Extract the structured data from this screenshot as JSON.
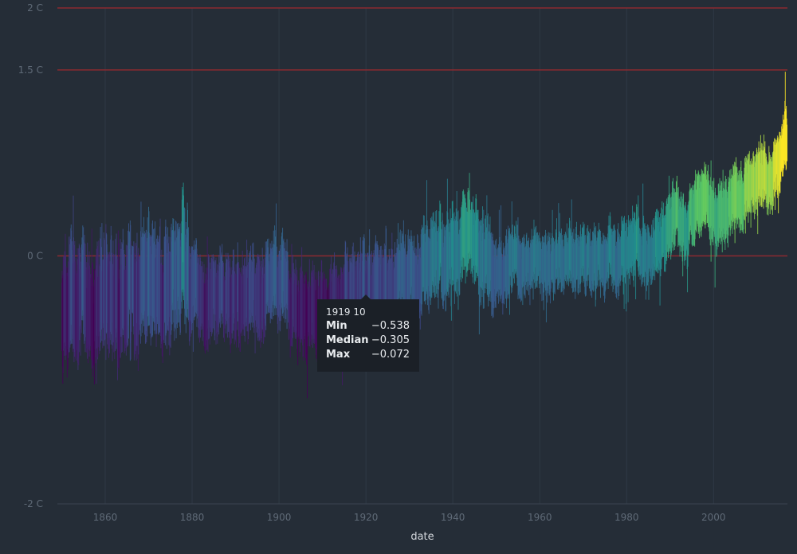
{
  "chart_data": {
    "type": "bar",
    "title": "",
    "xlabel": "date",
    "ylabel": "",
    "x_range": [
      1849,
      2017
    ],
    "y_range": [
      -2,
      2
    ],
    "y_ticks": [
      {
        "value": 2,
        "label": "2 C"
      },
      {
        "value": 1.5,
        "label": "1.5 C"
      },
      {
        "value": 0,
        "label": "0 C"
      },
      {
        "value": -2,
        "label": "-2 C"
      }
    ],
    "x_ticks": [
      1860,
      1880,
      1900,
      1920,
      1940,
      1960,
      1980,
      2000
    ],
    "reference_lines": [
      2,
      1.5,
      0
    ],
    "grid": "vertical",
    "start": "1850-01",
    "series_fields": [
      "min",
      "median",
      "max"
    ],
    "anchor_medians": [
      [
        "1850",
        -0.4
      ],
      [
        "1855",
        -0.28
      ],
      [
        "1860",
        -0.42
      ],
      [
        "1863",
        -0.45
      ],
      [
        "1865",
        -0.32
      ],
      [
        "1868",
        -0.3
      ],
      [
        "1870",
        -0.3
      ],
      [
        "1875",
        -0.36
      ],
      [
        "1878",
        0.0
      ],
      [
        "1880",
        -0.22
      ],
      [
        "1885",
        -0.3
      ],
      [
        "1890",
        -0.33
      ],
      [
        "1895",
        -0.3
      ],
      [
        "1900",
        -0.2
      ],
      [
        "1905",
        -0.4
      ],
      [
        "1910",
        -0.45
      ],
      [
        "1915",
        -0.32
      ],
      [
        "1919",
        -0.3
      ],
      [
        "1925",
        -0.24
      ],
      [
        "1930",
        -0.16
      ],
      [
        "1935",
        -0.12
      ],
      [
        "1940",
        0.02
      ],
      [
        "1944",
        0.1
      ],
      [
        "1948",
        -0.06
      ],
      [
        "1950",
        -0.12
      ],
      [
        "1955",
        -0.08
      ],
      [
        "1960",
        0.0
      ],
      [
        "1965",
        -0.08
      ],
      [
        "1970",
        0.0
      ],
      [
        "1975",
        -0.06
      ],
      [
        "1980",
        0.08
      ],
      [
        "1985",
        0.06
      ],
      [
        "1990",
        0.25
      ],
      [
        "1995",
        0.25
      ],
      [
        "1998",
        0.45
      ],
      [
        "2000",
        0.32
      ],
      [
        "2005",
        0.46
      ],
      [
        "2010",
        0.55
      ],
      [
        "2015",
        0.72
      ],
      [
        "2016",
        0.86
      ]
    ],
    "tooltip": {
      "date": "1919 10",
      "rows": [
        {
          "label": "Min",
          "value": "−0.538"
        },
        {
          "label": "Median",
          "value": "−0.305"
        },
        {
          "label": "Max",
          "value": "−0.072"
        }
      ]
    },
    "colors": {
      "reference_line": "#8b2a30",
      "grid": "#2f3945",
      "scale": [
        "#440154",
        "#3b528b",
        "#21908d",
        "#5dc963",
        "#fde725"
      ]
    }
  }
}
